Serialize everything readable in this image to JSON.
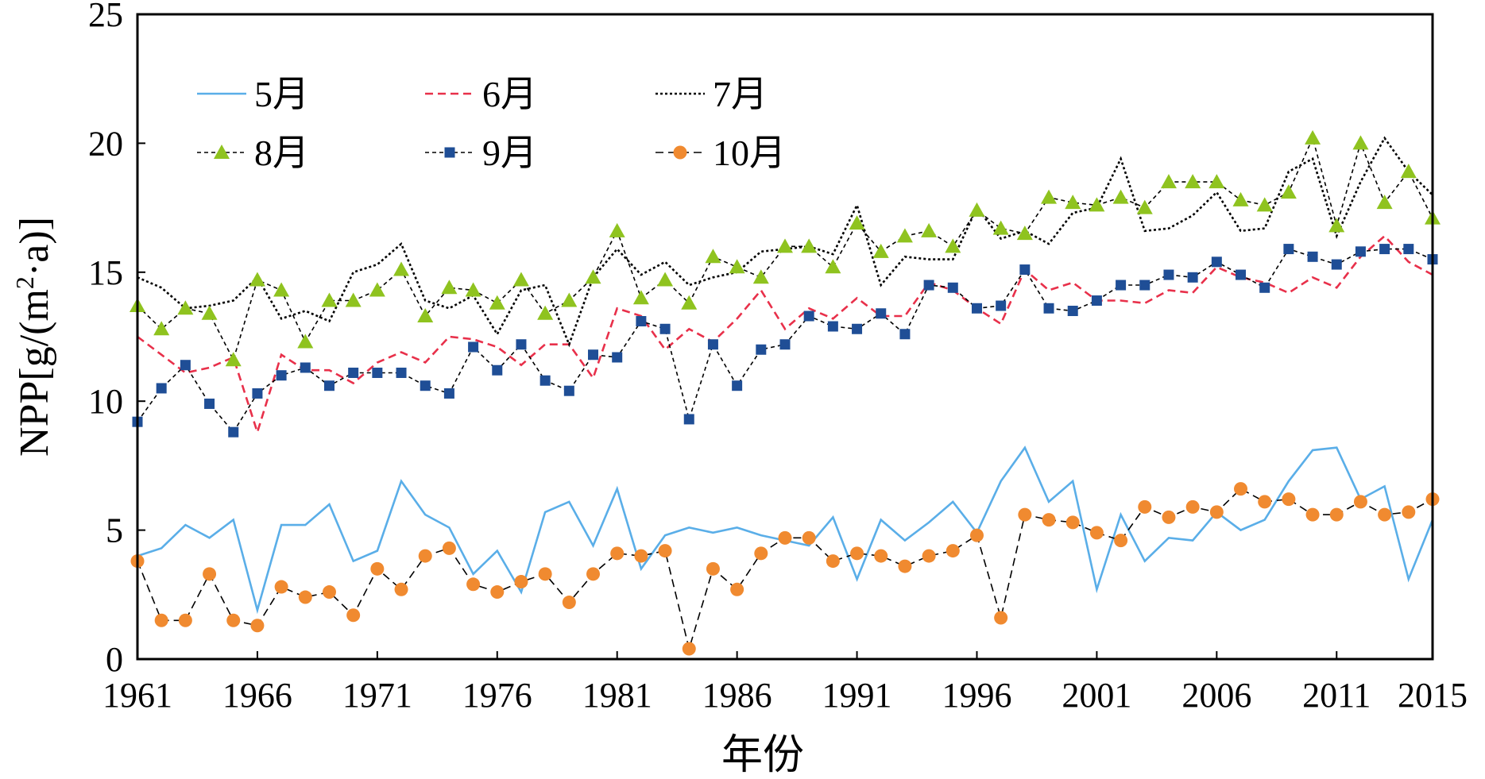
{
  "chart_data": {
    "type": "line",
    "xlabel": "年份",
    "ylabel": "NPP[g/(m²·a)]",
    "ylabel_parts": {
      "pre": "NPP[g/(m",
      "sup": "2",
      "post": "·a)]"
    },
    "xlim": [
      1961,
      2015
    ],
    "ylim": [
      0,
      25
    ],
    "xticks": [
      "1961",
      "1966",
      "1971",
      "1976",
      "1981",
      "1986",
      "1991",
      "1996",
      "2001",
      "2006",
      "2011",
      "2015"
    ],
    "yticks": [
      "0",
      "5",
      "10",
      "15",
      "20",
      "25"
    ],
    "grid": false,
    "legend": "top-left, 2 rows x 3 columns, inside plot",
    "x": [
      1961,
      1962,
      1963,
      1964,
      1965,
      1966,
      1967,
      1968,
      1969,
      1970,
      1971,
      1972,
      1973,
      1974,
      1975,
      1976,
      1977,
      1978,
      1979,
      1980,
      1981,
      1982,
      1983,
      1984,
      1985,
      1986,
      1987,
      1988,
      1989,
      1990,
      1991,
      1992,
      1993,
      1994,
      1995,
      1996,
      1997,
      1998,
      1999,
      2000,
      2001,
      2002,
      2003,
      2004,
      2005,
      2006,
      2007,
      2008,
      2009,
      2010,
      2011,
      2012,
      2013,
      2014,
      2015
    ],
    "series": [
      {
        "name": "5月",
        "color": "#5aaee8",
        "style": "solid",
        "marker": "none",
        "values": [
          4.0,
          4.3,
          5.2,
          4.7,
          5.4,
          1.9,
          5.2,
          5.2,
          6.0,
          3.8,
          4.2,
          6.9,
          5.6,
          5.1,
          3.3,
          4.2,
          2.6,
          5.7,
          6.1,
          4.4,
          6.6,
          3.5,
          4.8,
          5.1,
          4.9,
          5.1,
          4.8,
          4.6,
          4.4,
          5.5,
          3.1,
          5.4,
          4.6,
          5.3,
          6.1,
          4.9,
          6.9,
          8.2,
          6.1,
          6.9,
          2.7,
          5.6,
          3.8,
          4.7,
          4.6,
          5.7,
          5.0,
          5.4,
          6.9,
          8.1,
          8.2,
          6.2,
          6.7,
          3.1,
          5.4
        ]
      },
      {
        "name": "6月",
        "color": "#e8304a",
        "style": "dashed",
        "marker": "none",
        "values": [
          12.5,
          11.8,
          11.1,
          11.3,
          11.7,
          8.8,
          11.8,
          11.2,
          11.2,
          10.7,
          11.5,
          11.9,
          11.5,
          12.5,
          12.4,
          12.1,
          11.4,
          12.2,
          12.2,
          10.9,
          13.6,
          13.3,
          12.0,
          12.8,
          12.3,
          13.2,
          14.3,
          12.8,
          13.6,
          13.2,
          14.0,
          13.3,
          13.3,
          14.6,
          14.3,
          13.6,
          13.0,
          15.1,
          14.3,
          14.6,
          13.9,
          13.9,
          13.8,
          14.3,
          14.2,
          15.2,
          14.8,
          14.6,
          14.2,
          14.8,
          14.4,
          15.6,
          16.4,
          15.4,
          14.9
        ]
      },
      {
        "name": "7月",
        "color": "#000000",
        "style": "dotted",
        "marker": "none",
        "values": [
          14.8,
          14.4,
          13.6,
          13.7,
          13.9,
          14.8,
          13.2,
          13.5,
          13.1,
          15.0,
          15.3,
          16.1,
          13.9,
          13.6,
          14.1,
          12.6,
          14.3,
          14.5,
          12.2,
          14.8,
          15.9,
          14.9,
          15.4,
          14.5,
          14.8,
          15.0,
          15.8,
          15.9,
          16.0,
          15.7,
          17.6,
          14.5,
          15.6,
          15.5,
          15.5,
          17.5,
          16.3,
          16.6,
          16.1,
          17.3,
          17.5,
          19.4,
          16.6,
          16.7,
          17.2,
          18.1,
          16.6,
          16.7,
          18.9,
          19.4,
          16.4,
          18.5,
          20.2,
          18.9,
          18.0
        ]
      },
      {
        "name": "8月",
        "color": "#8fc31f",
        "line": "#000000",
        "style": "dashed-fine",
        "marker": "triangle",
        "values": [
          13.7,
          12.8,
          13.6,
          13.4,
          11.6,
          14.7,
          14.3,
          12.3,
          13.9,
          13.9,
          14.3,
          15.1,
          13.3,
          14.4,
          14.3,
          13.8,
          14.7,
          13.4,
          13.9,
          14.8,
          16.6,
          14.0,
          14.7,
          13.8,
          15.6,
          15.2,
          14.8,
          16.0,
          16.0,
          15.2,
          16.9,
          15.8,
          16.4,
          16.6,
          16.0,
          17.4,
          16.7,
          16.5,
          17.9,
          17.7,
          17.6,
          17.9,
          17.5,
          18.5,
          18.5,
          18.5,
          17.8,
          17.6,
          18.1,
          20.2,
          16.8,
          20.0,
          17.7,
          18.9,
          17.1
        ]
      },
      {
        "name": "9月",
        "color": "#1f4e96",
        "line": "#000000",
        "style": "dashed-fine",
        "marker": "square",
        "values": [
          9.2,
          10.5,
          11.4,
          9.9,
          8.8,
          10.3,
          11.0,
          11.3,
          10.6,
          11.1,
          11.1,
          11.1,
          10.6,
          10.3,
          12.1,
          11.2,
          12.2,
          10.8,
          10.4,
          11.8,
          11.7,
          13.1,
          12.8,
          9.3,
          12.2,
          10.6,
          12.0,
          12.2,
          13.3,
          12.9,
          12.8,
          13.4,
          12.6,
          14.5,
          14.4,
          13.6,
          13.7,
          15.1,
          13.6,
          13.5,
          13.9,
          14.5,
          14.5,
          14.9,
          14.8,
          15.4,
          14.9,
          14.4,
          15.9,
          15.6,
          15.3,
          15.8,
          15.9,
          15.9,
          15.5
        ]
      },
      {
        "name": "10月",
        "color": "#f08a30",
        "line": "#000000",
        "style": "dashed",
        "marker": "circle",
        "values": [
          3.8,
          1.5,
          1.5,
          3.3,
          1.5,
          1.3,
          2.8,
          2.4,
          2.6,
          1.7,
          3.5,
          2.7,
          4.0,
          4.3,
          2.9,
          2.6,
          3.0,
          3.3,
          2.2,
          3.3,
          4.1,
          4.0,
          4.2,
          0.4,
          3.5,
          2.7,
          4.1,
          4.7,
          4.7,
          3.8,
          4.1,
          4.0,
          3.6,
          4.0,
          4.2,
          4.8,
          1.6,
          5.6,
          5.4,
          5.3,
          4.9,
          4.6,
          5.9,
          5.5,
          5.9,
          5.7,
          6.6,
          6.1,
          6.2,
          5.6,
          5.6,
          6.1,
          5.6,
          5.7,
          6.2
        ]
      }
    ]
  }
}
